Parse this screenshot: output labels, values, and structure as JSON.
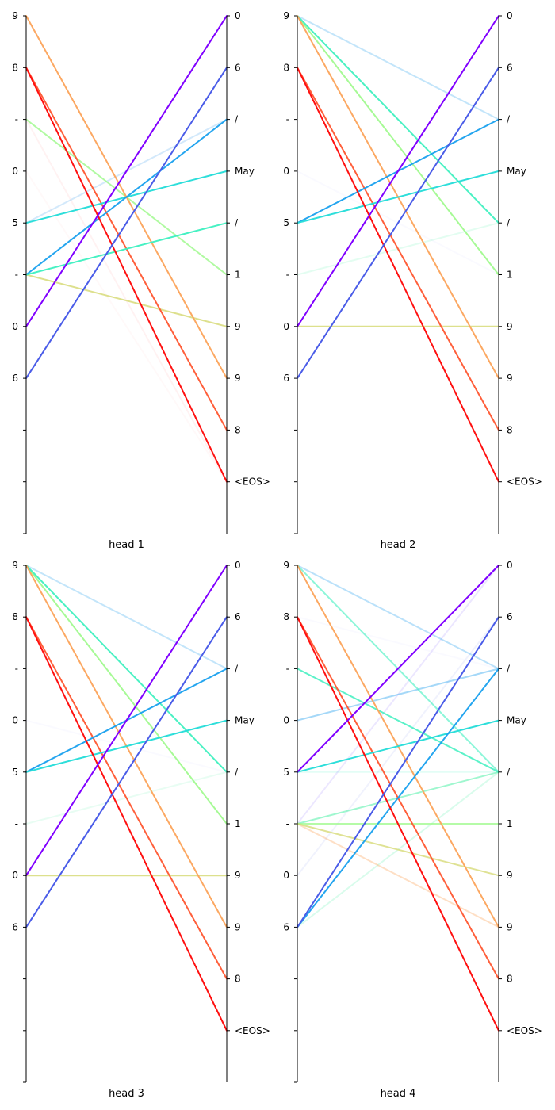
{
  "chart_data": {
    "type": "attention-alignment",
    "left_ticks": [
      "9",
      "8",
      "-",
      "0",
      "5",
      "-",
      "0",
      "6",
      "",
      ""
    ],
    "right_ticks": [
      "0",
      "6",
      "/",
      "May",
      "/",
      "1",
      "9",
      "9",
      "8",
      "<EOS>"
    ],
    "panels": [
      {
        "title": "head 1",
        "links": [
          {
            "from": 0,
            "to": 7,
            "weight": 0.95,
            "color": "#fca35a"
          },
          {
            "from": 1,
            "to": 9,
            "weight": 1.0,
            "color": "#ff1010"
          },
          {
            "from": 1,
            "to": 8,
            "weight": 0.95,
            "color": "#ff5630"
          },
          {
            "from": 2,
            "to": 5,
            "weight": 0.8,
            "color": "#9cf98a"
          },
          {
            "from": 2,
            "to": 9,
            "weight": 0.1,
            "color": "#ff8080"
          },
          {
            "from": 3,
            "to": 9,
            "weight": 0.05,
            "color": "#ff8080"
          },
          {
            "from": 4,
            "to": 2,
            "weight": 0.25,
            "color": "#4fa8f0"
          },
          {
            "from": 4,
            "to": 3,
            "weight": 0.95,
            "color": "#22dcd8"
          },
          {
            "from": 5,
            "to": 2,
            "weight": 0.95,
            "color": "#18a0ee"
          },
          {
            "from": 5,
            "to": 4,
            "weight": 0.95,
            "color": "#3cf0c0"
          },
          {
            "from": 5,
            "to": 6,
            "weight": 0.8,
            "color": "#d4d870"
          },
          {
            "from": 6,
            "to": 0,
            "weight": 1.0,
            "color": "#8000ff"
          },
          {
            "from": 7,
            "to": 1,
            "weight": 1.0,
            "color": "#4a5ce8"
          }
        ]
      },
      {
        "title": "head 2",
        "links": [
          {
            "from": 0,
            "to": 2,
            "weight": 0.3,
            "color": "#38a8f0"
          },
          {
            "from": 0,
            "to": 4,
            "weight": 0.95,
            "color": "#40f0c0"
          },
          {
            "from": 0,
            "to": 5,
            "weight": 0.9,
            "color": "#9cf98a"
          },
          {
            "from": 0,
            "to": 7,
            "weight": 0.95,
            "color": "#fca35a"
          },
          {
            "from": 1,
            "to": 9,
            "weight": 1.0,
            "color": "#ff1010"
          },
          {
            "from": 1,
            "to": 8,
            "weight": 0.95,
            "color": "#ff5630"
          },
          {
            "from": 3,
            "to": 5,
            "weight": 0.05,
            "color": "#a0a0ff"
          },
          {
            "from": 4,
            "to": 2,
            "weight": 0.95,
            "color": "#18a0ee"
          },
          {
            "from": 4,
            "to": 3,
            "weight": 0.95,
            "color": "#22dcd8"
          },
          {
            "from": 5,
            "to": 4,
            "weight": 0.15,
            "color": "#40f0a0"
          },
          {
            "from": 6,
            "to": 6,
            "weight": 0.8,
            "color": "#d4d870"
          },
          {
            "from": 6,
            "to": 0,
            "weight": 1.0,
            "color": "#8000ff"
          },
          {
            "from": 7,
            "to": 1,
            "weight": 1.0,
            "color": "#4a5ce8"
          }
        ]
      },
      {
        "title": "head 3",
        "links": [
          {
            "from": 0,
            "to": 2,
            "weight": 0.3,
            "color": "#38a8f0"
          },
          {
            "from": 0,
            "to": 4,
            "weight": 0.95,
            "color": "#40f0c0"
          },
          {
            "from": 0,
            "to": 5,
            "weight": 0.9,
            "color": "#9cf98a"
          },
          {
            "from": 0,
            "to": 7,
            "weight": 0.95,
            "color": "#fca35a"
          },
          {
            "from": 1,
            "to": 9,
            "weight": 1.0,
            "color": "#ff1010"
          },
          {
            "from": 1,
            "to": 8,
            "weight": 0.95,
            "color": "#ff5630"
          },
          {
            "from": 3,
            "to": 4,
            "weight": 0.05,
            "color": "#a0a0ff"
          },
          {
            "from": 4,
            "to": 2,
            "weight": 0.95,
            "color": "#18a0ee"
          },
          {
            "from": 4,
            "to": 3,
            "weight": 0.95,
            "color": "#22dcd8"
          },
          {
            "from": 5,
            "to": 4,
            "weight": 0.12,
            "color": "#40f0a0"
          },
          {
            "from": 6,
            "to": 6,
            "weight": 0.8,
            "color": "#d4d870"
          },
          {
            "from": 6,
            "to": 0,
            "weight": 1.0,
            "color": "#8000ff"
          },
          {
            "from": 7,
            "to": 1,
            "weight": 1.0,
            "color": "#4a5ce8"
          }
        ]
      },
      {
        "title": "head 4",
        "links": [
          {
            "from": 0,
            "to": 2,
            "weight": 0.35,
            "color": "#38a8f0"
          },
          {
            "from": 0,
            "to": 4,
            "weight": 0.6,
            "color": "#40f0c0"
          },
          {
            "from": 0,
            "to": 7,
            "weight": 0.95,
            "color": "#fca35a"
          },
          {
            "from": 1,
            "to": 9,
            "weight": 1.0,
            "color": "#ff1010"
          },
          {
            "from": 1,
            "to": 8,
            "weight": 0.95,
            "color": "#ff5630"
          },
          {
            "from": 1,
            "to": 2,
            "weight": 0.05,
            "color": "#a0a0ff"
          },
          {
            "from": 2,
            "to": 4,
            "weight": 0.85,
            "color": "#40f0c0"
          },
          {
            "from": 3,
            "to": 2,
            "weight": 0.45,
            "color": "#38a8f0"
          },
          {
            "from": 4,
            "to": 0,
            "weight": 1.0,
            "color": "#8000ff"
          },
          {
            "from": 4,
            "to": 3,
            "weight": 0.95,
            "color": "#22dcd8"
          },
          {
            "from": 4,
            "to": 4,
            "weight": 0.15,
            "color": "#40f0c0"
          },
          {
            "from": 5,
            "to": 0,
            "weight": 0.15,
            "color": "#8060ff"
          },
          {
            "from": 5,
            "to": 4,
            "weight": 0.5,
            "color": "#40f0a0"
          },
          {
            "from": 5,
            "to": 5,
            "weight": 0.75,
            "color": "#9cf98a"
          },
          {
            "from": 5,
            "to": 6,
            "weight": 0.75,
            "color": "#d4d870"
          },
          {
            "from": 5,
            "to": 7,
            "weight": 0.35,
            "color": "#fca35a"
          },
          {
            "from": 6,
            "to": 1,
            "weight": 0.1,
            "color": "#7080f0"
          },
          {
            "from": 7,
            "to": 1,
            "weight": 1.0,
            "color": "#4a5ce8"
          },
          {
            "from": 7,
            "to": 2,
            "weight": 0.95,
            "color": "#18a0ee"
          },
          {
            "from": 7,
            "to": 4,
            "weight": 0.2,
            "color": "#40f0a0"
          }
        ]
      }
    ]
  }
}
